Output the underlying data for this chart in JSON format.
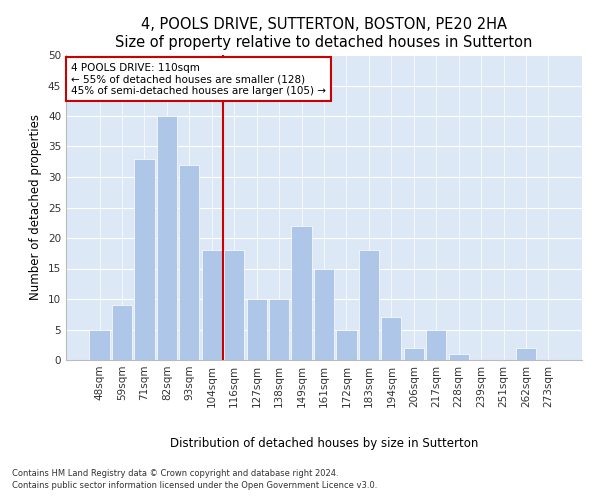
{
  "title1": "4, POOLS DRIVE, SUTTERTON, BOSTON, PE20 2HA",
  "title2": "Size of property relative to detached houses in Sutterton",
  "xlabel": "Distribution of detached houses by size in Sutterton",
  "ylabel": "Number of detached properties",
  "categories": [
    "48sqm",
    "59sqm",
    "71sqm",
    "82sqm",
    "93sqm",
    "104sqm",
    "116sqm",
    "127sqm",
    "138sqm",
    "149sqm",
    "161sqm",
    "172sqm",
    "183sqm",
    "194sqm",
    "206sqm",
    "217sqm",
    "228sqm",
    "239sqm",
    "251sqm",
    "262sqm",
    "273sqm"
  ],
  "values": [
    5,
    9,
    33,
    40,
    32,
    18,
    18,
    10,
    10,
    22,
    15,
    5,
    18,
    7,
    2,
    5,
    1,
    0,
    0,
    2,
    0
  ],
  "bar_color": "#aec6e8",
  "vline_x": 5.5,
  "vline_color": "#cc0000",
  "annotation_text": "4 POOLS DRIVE: 110sqm\n← 55% of detached houses are smaller (128)\n45% of semi-detached houses are larger (105) →",
  "annotation_box_edgecolor": "#cc0000",
  "ylim": [
    0,
    50
  ],
  "yticks": [
    0,
    5,
    10,
    15,
    20,
    25,
    30,
    35,
    40,
    45,
    50
  ],
  "footnote1": "Contains HM Land Registry data © Crown copyright and database right 2024.",
  "footnote2": "Contains public sector information licensed under the Open Government Licence v3.0.",
  "fig_bg_color": "#ffffff",
  "plot_bg_color": "#dce8f5",
  "title1_fontsize": 10.5,
  "title2_fontsize": 9.5,
  "tick_fontsize": 7.5,
  "ylabel_fontsize": 8.5,
  "xlabel_fontsize": 8.5,
  "annot_fontsize": 7.5,
  "footnote_fontsize": 6.0
}
